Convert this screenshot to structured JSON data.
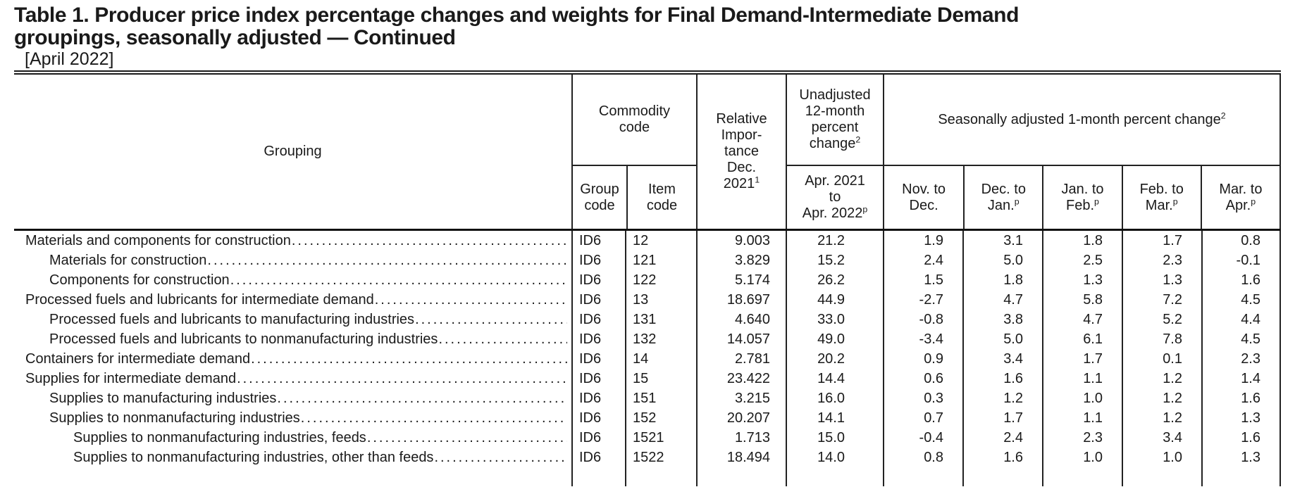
{
  "page": {
    "title_line1": "Table 1. Producer price index percentage changes and weights for Final Demand-Intermediate Demand",
    "title_line2": "groupings, seasonally adjusted — Continued",
    "subtitle": "[April 2022]"
  },
  "table": {
    "header": {
      "grouping": "Grouping",
      "commodity": {
        "line1": "Commodity",
        "line2": "code",
        "group": {
          "line1": "Group",
          "line2": "code"
        },
        "item": {
          "line1": "Item",
          "line2": "code"
        }
      },
      "relative": {
        "lines": [
          "Relative",
          "Impor-",
          "tance",
          "Dec."
        ],
        "last": "2021",
        "sup": "1"
      },
      "unadjusted": {
        "lines": [
          "Unadjusted",
          "12-month",
          "percent"
        ],
        "last": "change",
        "sup": "2",
        "sub": {
          "lines": [
            "Apr. 2021",
            "to"
          ],
          "last": "Apr. 2022",
          "sup": "p"
        }
      },
      "seasonal": {
        "label": "Seasonally adjusted 1-month percent change",
        "sup": "2",
        "months": [
          {
            "top": "Nov. to",
            "bottom": "Dec.",
            "sup": ""
          },
          {
            "top": "Dec. to",
            "bottom": "Jan.",
            "sup": "p"
          },
          {
            "top": "Jan. to",
            "bottom": "Feb.",
            "sup": "p"
          },
          {
            "top": "Feb. to",
            "bottom": "Mar.",
            "sup": "p"
          },
          {
            "top": "Mar. to",
            "bottom": "Apr.",
            "sup": "p"
          }
        ]
      }
    },
    "rows": [
      {
        "label": "Materials and components for construction",
        "indent": 0,
        "group_code": "ID6",
        "item_code": "12",
        "relative_importance": "9.003",
        "unadjusted_12mo": "21.2",
        "monthly": [
          "1.9",
          "3.1",
          "1.8",
          "1.7",
          "0.8"
        ]
      },
      {
        "label": "Materials for construction",
        "indent": 1,
        "group_code": "ID6",
        "item_code": "121",
        "relative_importance": "3.829",
        "unadjusted_12mo": "15.2",
        "monthly": [
          "2.4",
          "5.0",
          "2.5",
          "2.3",
          "-0.1"
        ]
      },
      {
        "label": "Components for construction",
        "indent": 1,
        "group_code": "ID6",
        "item_code": "122",
        "relative_importance": "5.174",
        "unadjusted_12mo": "26.2",
        "monthly": [
          "1.5",
          "1.8",
          "1.3",
          "1.3",
          "1.6"
        ]
      },
      {
        "label": "Processed fuels and lubricants for intermediate demand",
        "indent": 0,
        "group_code": "ID6",
        "item_code": "13",
        "relative_importance": "18.697",
        "unadjusted_12mo": "44.9",
        "monthly": [
          "-2.7",
          "4.7",
          "5.8",
          "7.2",
          "4.5"
        ]
      },
      {
        "label": "Processed fuels and lubricants to manufacturing industries",
        "indent": 1,
        "group_code": "ID6",
        "item_code": "131",
        "relative_importance": "4.640",
        "unadjusted_12mo": "33.0",
        "monthly": [
          "-0.8",
          "3.8",
          "4.7",
          "5.2",
          "4.4"
        ]
      },
      {
        "label": "Processed fuels and lubricants to nonmanufacturing industries",
        "indent": 1,
        "group_code": "ID6",
        "item_code": "132",
        "relative_importance": "14.057",
        "unadjusted_12mo": "49.0",
        "monthly": [
          "-3.4",
          "5.0",
          "6.1",
          "7.8",
          "4.5"
        ]
      },
      {
        "label": "Containers for intermediate demand",
        "indent": 0,
        "group_code": "ID6",
        "item_code": "14",
        "relative_importance": "2.781",
        "unadjusted_12mo": "20.2",
        "monthly": [
          "0.9",
          "3.4",
          "1.7",
          "0.1",
          "2.3"
        ]
      },
      {
        "label": "Supplies for intermediate demand",
        "indent": 0,
        "group_code": "ID6",
        "item_code": "15",
        "relative_importance": "23.422",
        "unadjusted_12mo": "14.4",
        "monthly": [
          "0.6",
          "1.6",
          "1.1",
          "1.2",
          "1.4"
        ]
      },
      {
        "label": "Supplies to manufacturing industries",
        "indent": 1,
        "group_code": "ID6",
        "item_code": "151",
        "relative_importance": "3.215",
        "unadjusted_12mo": "16.0",
        "monthly": [
          "0.3",
          "1.2",
          "1.0",
          "1.2",
          "1.6"
        ]
      },
      {
        "label": "Supplies to nonmanufacturing industries",
        "indent": 1,
        "group_code": "ID6",
        "item_code": "152",
        "relative_importance": "20.207",
        "unadjusted_12mo": "14.1",
        "monthly": [
          "0.7",
          "1.7",
          "1.1",
          "1.2",
          "1.3"
        ]
      },
      {
        "label": "Supplies to nonmanufacturing industries, feeds",
        "indent": 2,
        "group_code": "ID6",
        "item_code": "1521",
        "relative_importance": "1.713",
        "unadjusted_12mo": "15.0",
        "monthly": [
          "-0.4",
          "2.4",
          "2.3",
          "3.4",
          "1.6"
        ]
      },
      {
        "label": "Supplies to nonmanufacturing industries, other than feeds",
        "indent": 2,
        "group_code": "ID6",
        "item_code": "1522",
        "relative_importance": "18.494",
        "unadjusted_12mo": "14.0",
        "monthly": [
          "0.8",
          "1.6",
          "1.0",
          "1.0",
          "1.3"
        ]
      }
    ]
  }
}
